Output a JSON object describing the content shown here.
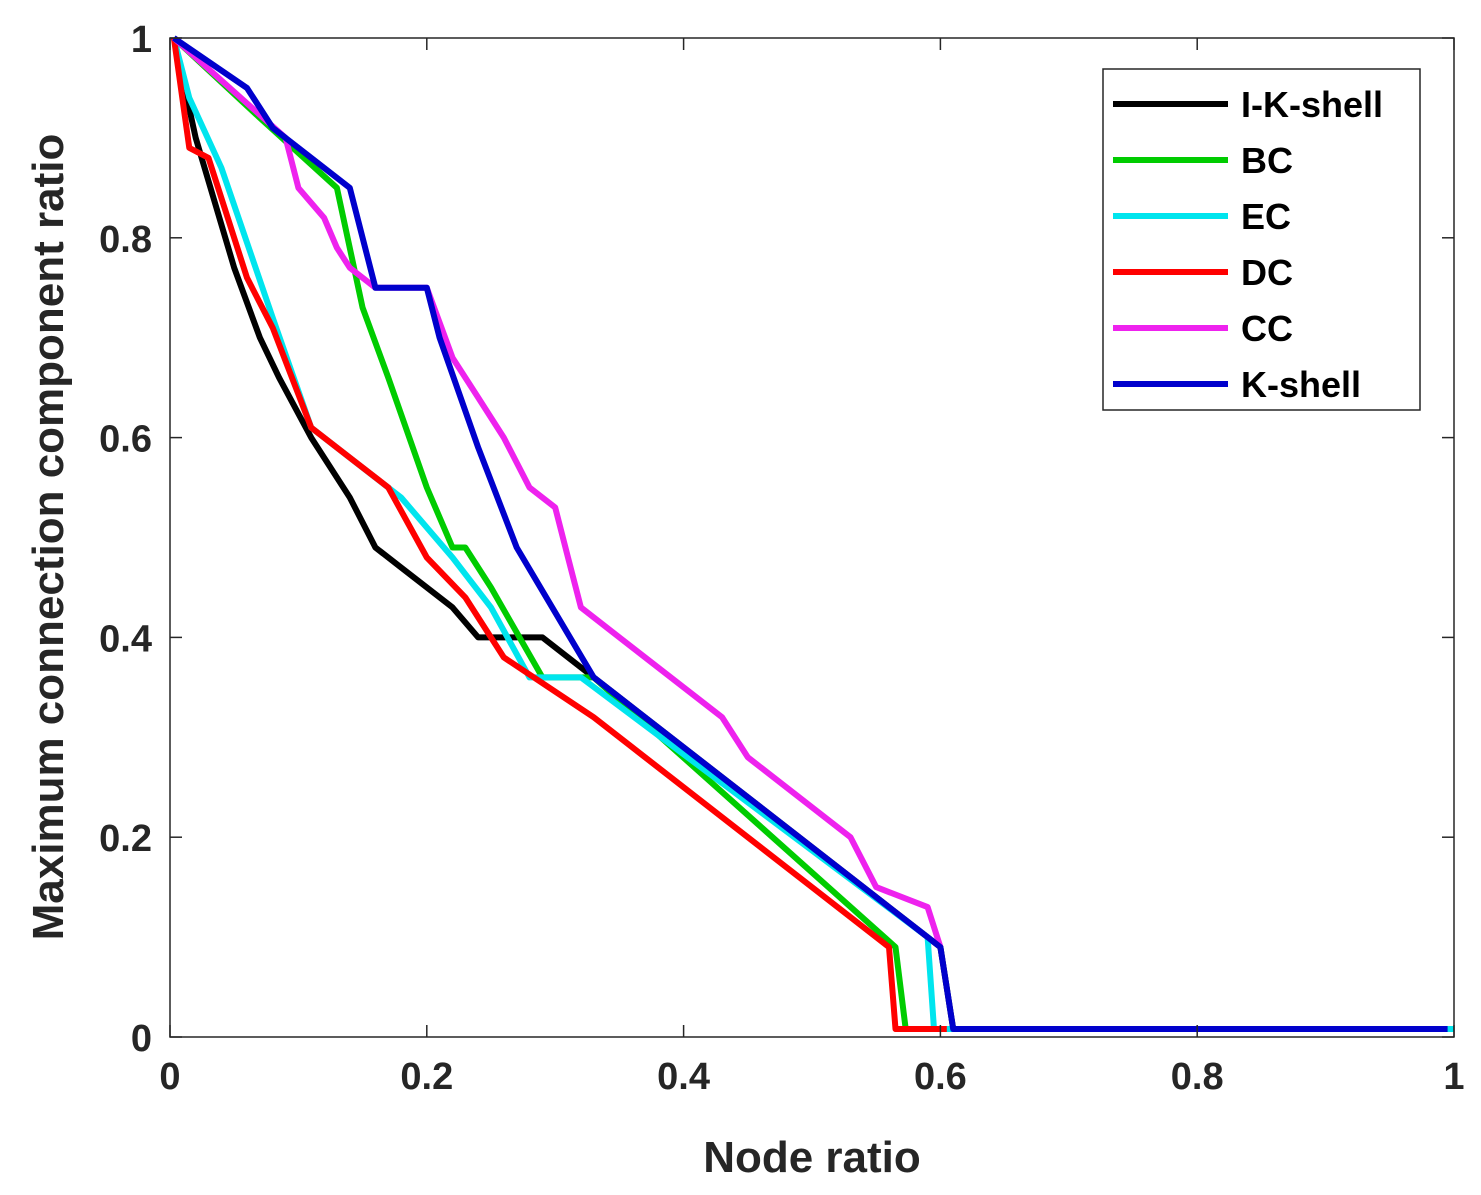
{
  "chart_data": {
    "type": "line",
    "title": "",
    "xlabel": "Node ratio",
    "ylabel": "Maximum connection component ratio",
    "xlim": [
      0,
      1
    ],
    "ylim": [
      0,
      1
    ],
    "x_ticks": [
      0,
      0.2,
      0.4,
      0.6,
      0.8,
      1
    ],
    "x_tick_labels": [
      "0",
      "0.2",
      "0.4",
      "0.6",
      "0.8",
      "1"
    ],
    "y_ticks": [
      0,
      0.2,
      0.4,
      0.6,
      0.8,
      1
    ],
    "y_tick_labels": [
      "0",
      "0.2",
      "0.4",
      "0.6",
      "0.8",
      "1"
    ],
    "grid": false,
    "legend_position": "top-right",
    "series": [
      {
        "name": "I-K-shell",
        "color": "#000000",
        "points": [
          [
            0.003,
            1.0
          ],
          [
            0.02,
            0.9
          ],
          [
            0.05,
            0.77
          ],
          [
            0.07,
            0.7
          ],
          [
            0.085,
            0.66
          ],
          [
            0.11,
            0.6
          ],
          [
            0.14,
            0.54
          ],
          [
            0.16,
            0.49
          ],
          [
            0.18,
            0.47
          ],
          [
            0.22,
            0.43
          ],
          [
            0.24,
            0.4
          ],
          [
            0.29,
            0.4
          ],
          [
            0.33,
            0.36
          ],
          [
            0.6,
            0.09
          ],
          [
            0.61,
            0.008
          ],
          [
            1.0,
            0.008
          ]
        ]
      },
      {
        "name": "BC",
        "color": "#00cc00",
        "points": [
          [
            0.003,
            1.0
          ],
          [
            0.07,
            0.92
          ],
          [
            0.13,
            0.85
          ],
          [
            0.15,
            0.73
          ],
          [
            0.17,
            0.66
          ],
          [
            0.2,
            0.55
          ],
          [
            0.22,
            0.49
          ],
          [
            0.23,
            0.49
          ],
          [
            0.25,
            0.45
          ],
          [
            0.29,
            0.36
          ],
          [
            0.33,
            0.36
          ],
          [
            0.565,
            0.09
          ],
          [
            0.573,
            0.008
          ],
          [
            1.0,
            0.008
          ]
        ]
      },
      {
        "name": "EC",
        "color": "#00e5ee",
        "points": [
          [
            0.003,
            1.0
          ],
          [
            0.015,
            0.94
          ],
          [
            0.04,
            0.87
          ],
          [
            0.08,
            0.72
          ],
          [
            0.11,
            0.61
          ],
          [
            0.15,
            0.57
          ],
          [
            0.18,
            0.54
          ],
          [
            0.22,
            0.48
          ],
          [
            0.25,
            0.43
          ],
          [
            0.28,
            0.36
          ],
          [
            0.32,
            0.36
          ],
          [
            0.59,
            0.1
          ],
          [
            0.595,
            0.008
          ],
          [
            1.0,
            0.008
          ]
        ]
      },
      {
        "name": "DC",
        "color": "#ff0000",
        "points": [
          [
            0.003,
            1.0
          ],
          [
            0.015,
            0.89
          ],
          [
            0.03,
            0.88
          ],
          [
            0.06,
            0.76
          ],
          [
            0.08,
            0.71
          ],
          [
            0.11,
            0.61
          ],
          [
            0.14,
            0.58
          ],
          [
            0.17,
            0.55
          ],
          [
            0.2,
            0.48
          ],
          [
            0.23,
            0.44
          ],
          [
            0.26,
            0.38
          ],
          [
            0.33,
            0.32
          ],
          [
            0.56,
            0.09
          ],
          [
            0.565,
            0.008
          ],
          [
            0.605,
            0.008
          ]
        ]
      },
      {
        "name": "CC",
        "color": "#ee22ee",
        "points": [
          [
            0.003,
            1.0
          ],
          [
            0.09,
            0.9
          ],
          [
            0.1,
            0.85
          ],
          [
            0.12,
            0.82
          ],
          [
            0.13,
            0.79
          ],
          [
            0.14,
            0.77
          ],
          [
            0.16,
            0.75
          ],
          [
            0.2,
            0.75
          ],
          [
            0.22,
            0.68
          ],
          [
            0.24,
            0.64
          ],
          [
            0.26,
            0.6
          ],
          [
            0.28,
            0.55
          ],
          [
            0.3,
            0.53
          ],
          [
            0.31,
            0.48
          ],
          [
            0.32,
            0.43
          ],
          [
            0.36,
            0.39
          ],
          [
            0.43,
            0.32
          ],
          [
            0.45,
            0.28
          ],
          [
            0.53,
            0.2
          ],
          [
            0.55,
            0.15
          ],
          [
            0.59,
            0.13
          ],
          [
            0.6,
            0.09
          ]
        ]
      },
      {
        "name": "K-shell",
        "color": "#0000cc",
        "points": [
          [
            0.003,
            1.0
          ],
          [
            0.06,
            0.95
          ],
          [
            0.07,
            0.93
          ],
          [
            0.08,
            0.91
          ],
          [
            0.1,
            0.89
          ],
          [
            0.14,
            0.85
          ],
          [
            0.16,
            0.75
          ],
          [
            0.2,
            0.75
          ],
          [
            0.21,
            0.7
          ],
          [
            0.24,
            0.59
          ],
          [
            0.27,
            0.49
          ],
          [
            0.33,
            0.36
          ],
          [
            0.6,
            0.09
          ],
          [
            0.61,
            0.008
          ],
          [
            0.995,
            0.008
          ]
        ]
      }
    ]
  }
}
